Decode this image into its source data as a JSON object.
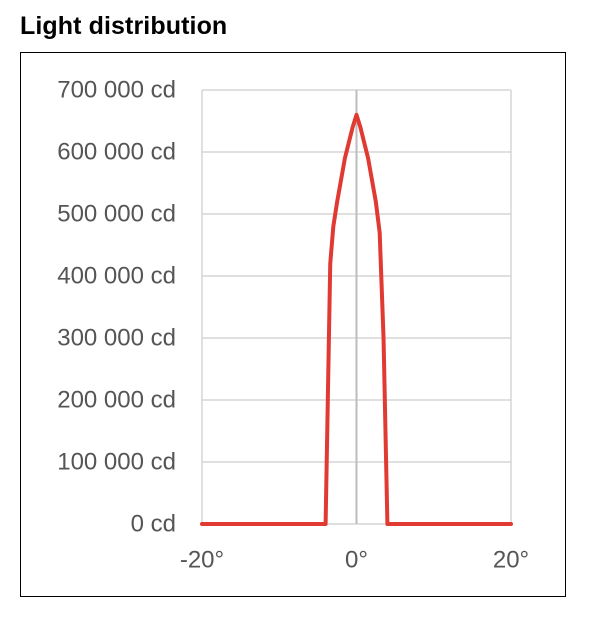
{
  "title": "Light distribution",
  "chart_data": {
    "type": "line",
    "title": "Light distribution",
    "xlabel": "",
    "ylabel": "",
    "xlim": [
      -20,
      20
    ],
    "ylim": [
      0,
      700000
    ],
    "x_ticks": [
      -20,
      0,
      20
    ],
    "x_tick_labels": [
      "-20°",
      "0°",
      "20°"
    ],
    "y_ticks": [
      0,
      100000,
      200000,
      300000,
      400000,
      500000,
      600000,
      700000
    ],
    "y_tick_labels": [
      "0 cd",
      "100 000 cd",
      "200 000 cd",
      "300 000 cd",
      "400 000 cd",
      "500 000 cd",
      "600 000 cd",
      "700 000 cd"
    ],
    "grid": true,
    "legend": "none",
    "series": [
      {
        "color": "#e03a33",
        "x": [
          -20,
          -4,
          -3.4,
          -3,
          -2.5,
          -1.5,
          -0.5,
          0,
          0.5,
          1.5,
          2.5,
          3,
          3.5,
          4,
          20
        ],
        "y": [
          0,
          0,
          420000,
          480000,
          520000,
          590000,
          640000,
          660000,
          640000,
          590000,
          520000,
          470000,
          300000,
          0,
          0
        ]
      }
    ]
  }
}
